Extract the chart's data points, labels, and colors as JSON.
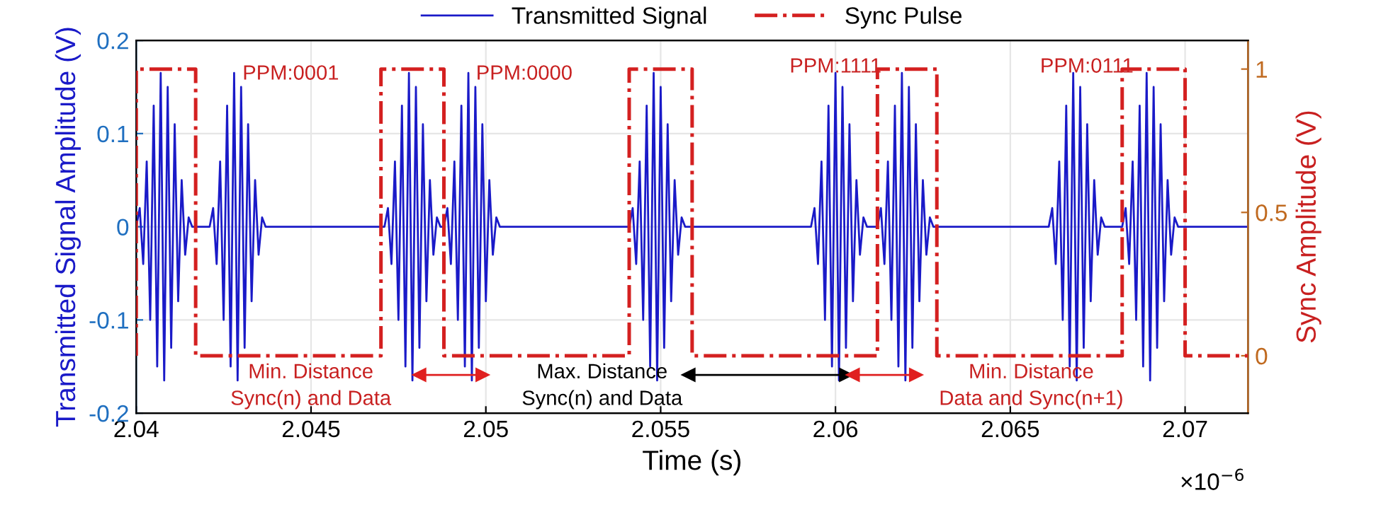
{
  "chart_data": {
    "type": "line",
    "xlabel": "Time (s)",
    "ylabel": "Transmitted Signal Amplitude (V)",
    "y2label": "Sync Amplitude (V)",
    "xlim": [
      2.04,
      2.0718
    ],
    "xticks": [
      2.04,
      2.045,
      2.05,
      2.055,
      2.06,
      2.065,
      2.07
    ],
    "ylim": [
      -0.2,
      0.2
    ],
    "yticks": [
      -0.2,
      -0.1,
      0,
      0.1,
      0.2
    ],
    "y2lim": [
      -0.2,
      1.1
    ],
    "y2ticks": [
      0,
      0.5,
      1
    ],
    "grid": true,
    "legend": "top",
    "series": [
      {
        "name": "Transmitted Signal",
        "color": "#1a1ac8",
        "line_style": "solid",
        "x": [
          2.04,
          2.0401,
          2.0402,
          2.0403,
          2.0404,
          2.0405,
          2.0406,
          2.0407,
          2.0408,
          2.0409,
          2.041,
          2.0411,
          2.0412,
          2.0413,
          2.0414,
          2.0415,
          2.0416,
          2.0421,
          2.0422,
          2.0423,
          2.0424,
          2.0425,
          2.0426,
          2.0427,
          2.0428,
          2.0429,
          2.043,
          2.0431,
          2.0432,
          2.0433,
          2.0434,
          2.0435,
          2.0436,
          2.0437,
          2.0471,
          2.0472,
          2.0473,
          2.0474,
          2.0475,
          2.0476,
          2.0477,
          2.0478,
          2.0479,
          2.048,
          2.0481,
          2.0482,
          2.0483,
          2.0484,
          2.0485,
          2.0486,
          2.0487,
          2.0488,
          2.0489,
          2.049,
          2.0491,
          2.0492,
          2.0493,
          2.0494,
          2.0495,
          2.0496,
          2.0497,
          2.0498,
          2.0499,
          2.05,
          2.0501,
          2.0502,
          2.0503,
          2.0504,
          2.0541,
          2.0542,
          2.0543,
          2.0544,
          2.0545,
          2.0546,
          2.0547,
          2.0548,
          2.0549,
          2.055,
          2.0551,
          2.0552,
          2.0553,
          2.0554,
          2.0555,
          2.0556,
          2.0557,
          2.0593,
          2.0594,
          2.0595,
          2.0596,
          2.0597,
          2.0598,
          2.0599,
          2.06,
          2.0601,
          2.0602,
          2.0603,
          2.0604,
          2.0605,
          2.0606,
          2.0607,
          2.0608,
          2.0609,
          2.0612,
          2.0613,
          2.0614,
          2.0615,
          2.0616,
          2.0617,
          2.0618,
          2.0619,
          2.062,
          2.0621,
          2.0622,
          2.0623,
          2.0624,
          2.0625,
          2.0626,
          2.0627,
          2.0628,
          2.0661,
          2.0662,
          2.0663,
          2.0664,
          2.0665,
          2.0666,
          2.0667,
          2.0668,
          2.0669,
          2.067,
          2.0671,
          2.0672,
          2.0673,
          2.0674,
          2.0675,
          2.0676,
          2.0677,
          2.0682,
          2.0683,
          2.0684,
          2.0685,
          2.0686,
          2.0687,
          2.0688,
          2.0689,
          2.069,
          2.0691,
          2.0692,
          2.0693,
          2.0694,
          2.0695,
          2.0696,
          2.0697,
          2.0698,
          2.0718
        ],
        "values": [
          0,
          0.02,
          -0.04,
          0.07,
          -0.1,
          0.13,
          -0.15,
          0.165,
          -0.165,
          0.15,
          -0.13,
          0.11,
          -0.08,
          0.05,
          -0.03,
          0.01,
          0,
          0,
          0.02,
          -0.04,
          0.07,
          -0.1,
          0.13,
          -0.15,
          0.165,
          -0.165,
          0.15,
          -0.13,
          0.11,
          -0.08,
          0.05,
          -0.03,
          0.01,
          0,
          0,
          0.02,
          -0.04,
          0.07,
          -0.1,
          0.13,
          -0.15,
          0.165,
          -0.165,
          0.15,
          -0.13,
          0.11,
          -0.08,
          0.05,
          -0.03,
          0.01,
          0,
          0,
          0.02,
          -0.04,
          0.07,
          -0.1,
          0.13,
          -0.15,
          0.165,
          -0.165,
          0.15,
          -0.13,
          0.11,
          -0.08,
          0.05,
          -0.03,
          0.01,
          0,
          0,
          0.02,
          -0.04,
          0.07,
          -0.1,
          0.13,
          -0.15,
          0.165,
          -0.165,
          0.15,
          -0.13,
          0.11,
          -0.08,
          0.05,
          -0.03,
          0.01,
          0,
          0,
          0.02,
          -0.04,
          0.07,
          -0.1,
          0.13,
          -0.15,
          0.165,
          -0.165,
          0.15,
          -0.13,
          0.11,
          -0.08,
          0.05,
          -0.03,
          0.01,
          0,
          0,
          0.02,
          -0.04,
          0.07,
          -0.1,
          0.13,
          -0.15,
          0.165,
          -0.165,
          0.15,
          -0.13,
          0.11,
          -0.08,
          0.05,
          -0.03,
          0.01,
          0,
          0,
          0.02,
          -0.04,
          0.07,
          -0.1,
          0.13,
          -0.15,
          0.165,
          -0.165,
          0.15,
          -0.13,
          0.11,
          -0.08,
          0.05,
          -0.03,
          0.01,
          0,
          0,
          0.02,
          -0.04,
          0.07,
          -0.1,
          0.13,
          -0.15,
          0.165,
          -0.165,
          0.15,
          -0.13,
          0.11,
          -0.08,
          0.05,
          -0.03,
          0.01,
          0,
          0
        ]
      },
      {
        "name": "Sync Pulse",
        "color": "#d42020",
        "axis": "y2",
        "line_style": "dashed",
        "x": [
          2.04,
          2.04,
          2.0417,
          2.0417,
          2.047,
          2.047,
          2.0488,
          2.0488,
          2.0541,
          2.0541,
          2.0559,
          2.0559,
          2.0612,
          2.0612,
          2.0629,
          2.0629,
          2.0682,
          2.0682,
          2.07,
          2.07,
          2.0718
        ],
        "values": [
          0,
          1,
          1,
          0,
          0,
          1,
          1,
          0,
          0,
          1,
          1,
          0,
          0,
          1,
          1,
          0,
          0,
          1,
          1,
          0,
          0
        ]
      },
      {
        "color": "#e02020",
        "line_style": "solid",
        "marker": "triangle",
        "x": [
          2.0481,
          2.0499
        ],
        "values": [
          -0.159,
          -0.159
        ]
      },
      {
        "color": "#000000",
        "line_style": "solid",
        "marker": "triangle",
        "x": [
          2.0558,
          2.0603
        ],
        "values": [
          -0.159,
          -0.159
        ]
      },
      {
        "color": "#e02020",
        "line_style": "solid",
        "marker": "triangle",
        "x": [
          2.0605,
          2.0623
        ],
        "values": [
          -0.159,
          -0.159
        ]
      }
    ],
    "annotations": [
      "PPM:0001",
      "PPM:0000",
      "PPM:1111",
      "PPM:0111",
      "Min. Distance\nSync(n) and Data",
      "Max. Distance\nSync(n) and Data",
      "Min. Distance\nData and Sync(n+1)",
      "×10$^{−6}$"
    ]
  }
}
